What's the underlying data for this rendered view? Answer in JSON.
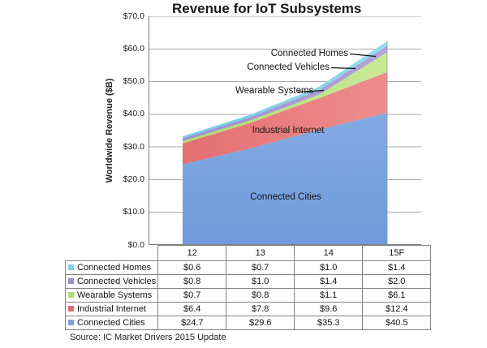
{
  "title": "Revenue for IoT Subsystems",
  "y_axis": {
    "title": "Worldwide Revenue ($B)",
    "ticks": [
      "$70.0",
      "$60.0",
      "$50.0",
      "$40.0",
      "$30.0",
      "$20.0",
      "$10.0",
      "$0.0"
    ]
  },
  "annotations": {
    "connected_homes": "Connected Homes",
    "connected_vehicles": "Connected Vehicles",
    "wearable_systems": "Wearable Systems",
    "industrial_internet": "Industrial Internet",
    "connected_cities": "Connected Cities"
  },
  "chart_data": {
    "type": "area",
    "stacked": true,
    "title": "Revenue for IoT Subsystems",
    "xlabel": "",
    "ylabel": "Worldwide Revenue ($B)",
    "ylim": [
      0,
      70
    ],
    "y_tick_step": 10,
    "grid": true,
    "legend_position": "table-left",
    "categories": [
      "12",
      "13",
      "14",
      "15F"
    ],
    "series": [
      {
        "name": "Connected Cities",
        "values": [
          24.7,
          29.6,
          35.3,
          40.5
        ],
        "color": "#93B5E8",
        "color2": "#6F9ADB",
        "gradient": "v"
      },
      {
        "name": "Industrial Internet",
        "values": [
          6.4,
          7.8,
          9.6,
          12.4
        ],
        "color": "#E26A6C",
        "color2": "#F09293",
        "gradient": "h"
      },
      {
        "name": "Wearable Systems",
        "values": [
          0.7,
          0.8,
          1.1,
          6.1
        ],
        "color": "#ACD96A",
        "color2": "#CDEB9F",
        "gradient": "h"
      },
      {
        "name": "Connected Vehicles",
        "values": [
          0.8,
          1.0,
          1.4,
          2.0
        ],
        "color": "#9A8CCB",
        "color2": "#B5A7DB",
        "gradient": "h"
      },
      {
        "name": "Connected Homes",
        "values": [
          0.6,
          0.7,
          1.0,
          1.4
        ],
        "color": "#6EC9E4",
        "color2": "#97DFF1",
        "gradient": "h"
      }
    ]
  },
  "table": {
    "col_headers": [
      "12",
      "13",
      "14",
      "15F"
    ],
    "rows": [
      {
        "label": "Connected Homes",
        "marker_color": "#7FD3E8",
        "values": [
          "$0.6",
          "$0.7",
          "$1.0",
          "$1.4"
        ]
      },
      {
        "label": "Connected Vehicles",
        "marker_color": "#9D90CC",
        "values": [
          "$0.8",
          "$1.0",
          "$1.4",
          "$2.0"
        ]
      },
      {
        "label": "Wearable Systems",
        "marker_color": "#B3DC6E",
        "values": [
          "$0.7",
          "$0.8",
          "$1.1",
          "$6.1"
        ]
      },
      {
        "label": "Industrial Internet",
        "marker_color": "#E06C6E",
        "values": [
          "$6.4",
          "$7.8",
          "$9.6",
          "$12.4"
        ]
      },
      {
        "label": "Connected Cities",
        "marker_color": "#7CA1DE",
        "values": [
          "$24.7",
          "$29.6",
          "$35.3",
          "$40.5"
        ]
      }
    ]
  },
  "source": "Source:  IC Market Drivers 2015 Update"
}
